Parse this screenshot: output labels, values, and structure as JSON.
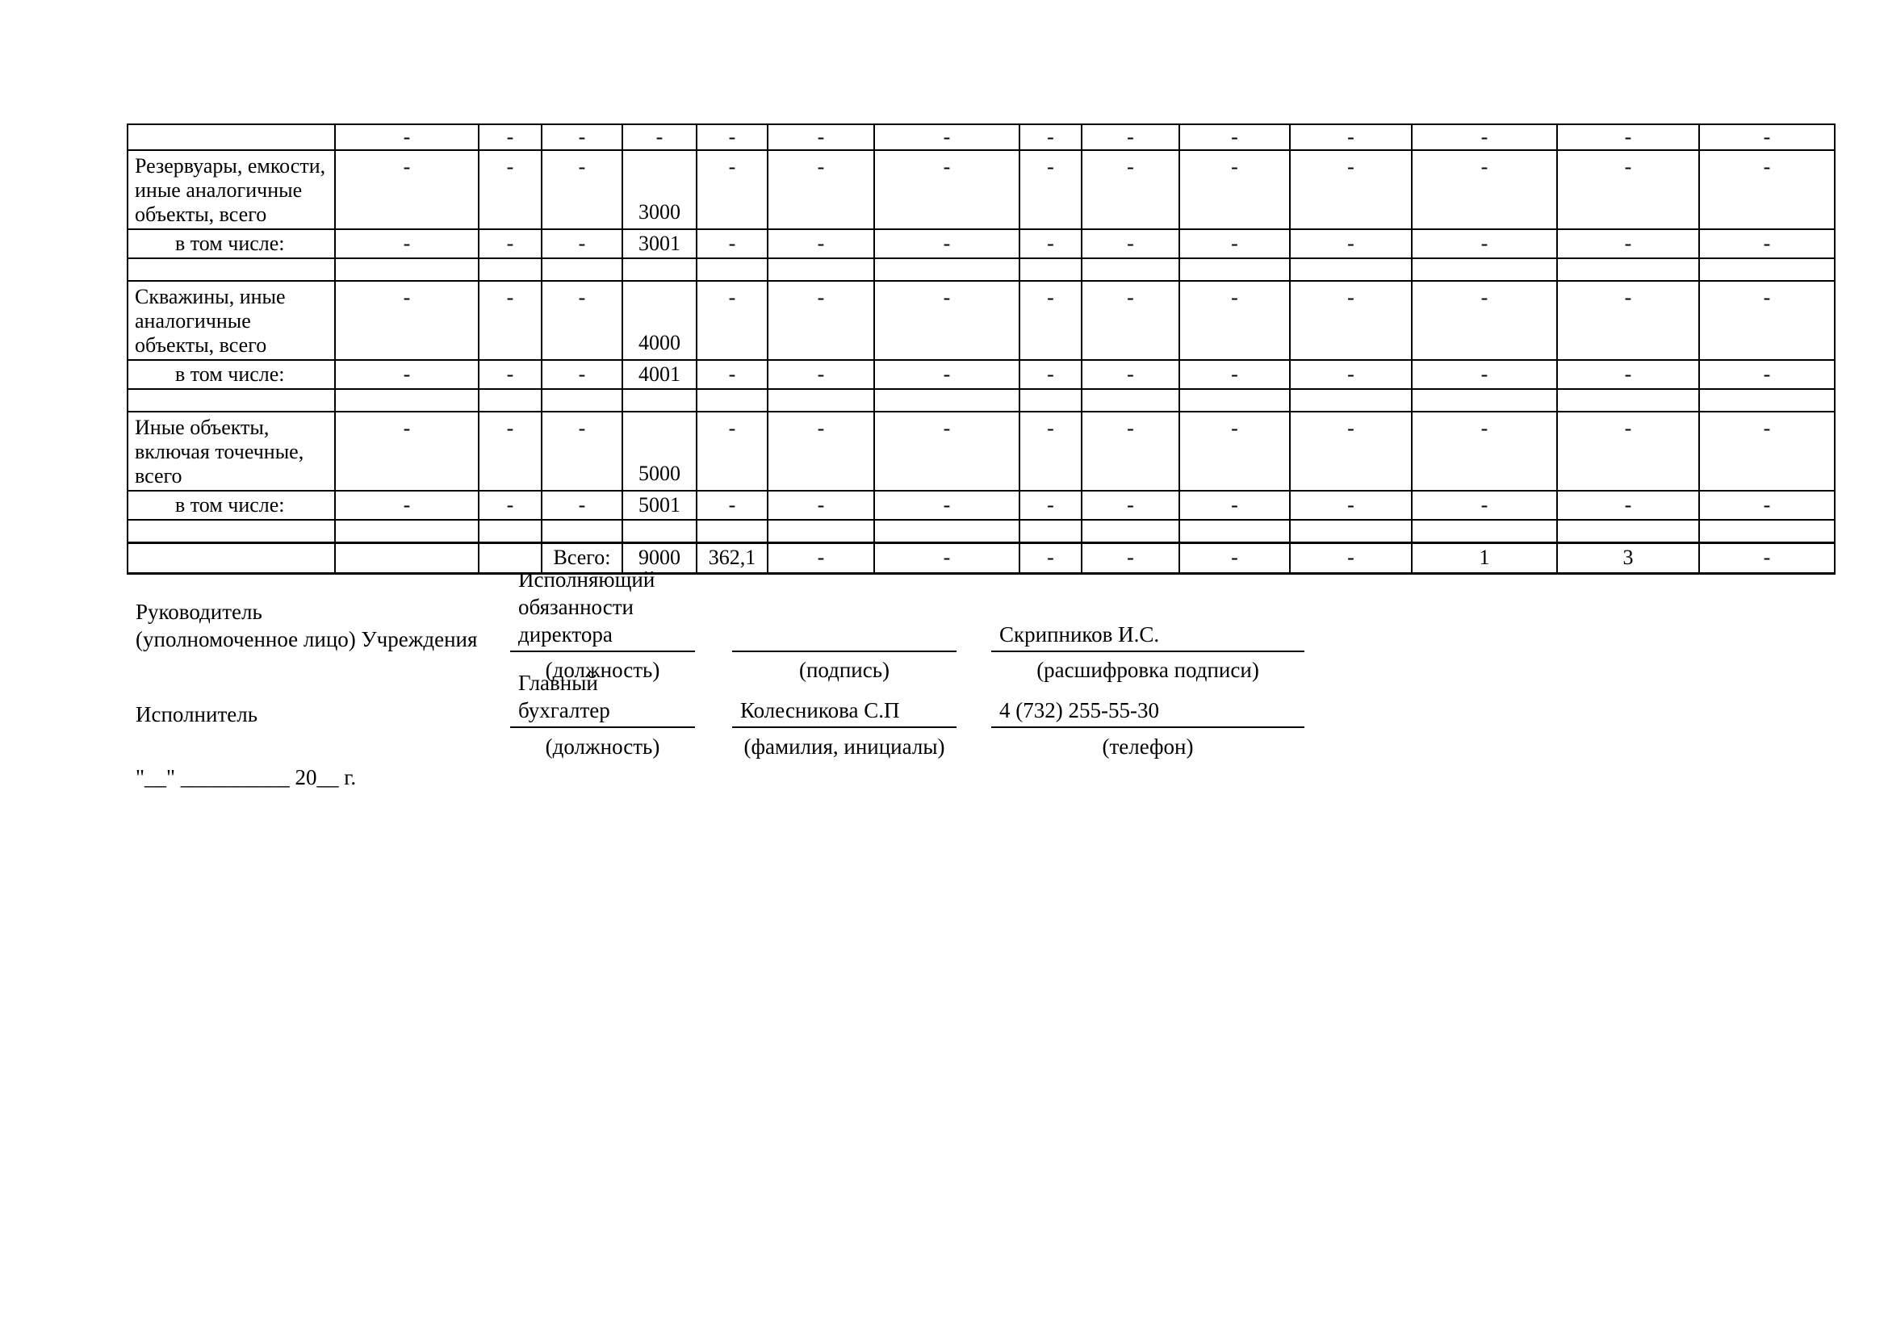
{
  "colors": {
    "ink": "#000000",
    "paper": "#ffffff"
  },
  "table": {
    "rows": [
      {
        "tall": false,
        "indent": false,
        "total": false,
        "label": "",
        "cells": [
          "-",
          "-",
          "-",
          "-",
          "-",
          "-",
          "-",
          "-",
          "-",
          "-",
          "-",
          "-",
          "-",
          "-"
        ]
      },
      {
        "tall": true,
        "indent": false,
        "total": false,
        "label": [
          "Резервуары, емкости,",
          "иные аналогичные",
          "объекты, всего"
        ],
        "cells": [
          "-",
          "-",
          "-",
          "3000",
          "-",
          "-",
          "-",
          "-",
          "-",
          "-",
          "-",
          "-",
          "-",
          "-"
        ]
      },
      {
        "tall": false,
        "indent": true,
        "total": false,
        "label": "в том числе:",
        "cells": [
          "-",
          "-",
          "-",
          "3001",
          "-",
          "-",
          "-",
          "-",
          "-",
          "-",
          "-",
          "-",
          "-",
          "-"
        ]
      },
      {
        "tall": false,
        "indent": false,
        "total": false,
        "label": "",
        "cells": [
          "",
          "",
          "",
          "",
          "",
          "",
          "",
          "",
          "",
          "",
          "",
          "",
          "",
          ""
        ]
      },
      {
        "tall": true,
        "indent": false,
        "total": false,
        "label": [
          "Скважины, иные",
          "аналогичные",
          "объекты, всего"
        ],
        "cells": [
          "-",
          "-",
          "-",
          "4000",
          "-",
          "-",
          "-",
          "-",
          "-",
          "-",
          "-",
          "-",
          "-",
          "-"
        ]
      },
      {
        "tall": false,
        "indent": true,
        "total": false,
        "label": "в том числе:",
        "cells": [
          "-",
          "-",
          "-",
          "4001",
          "-",
          "-",
          "-",
          "-",
          "-",
          "-",
          "-",
          "-",
          "-",
          "-"
        ]
      },
      {
        "tall": false,
        "indent": false,
        "total": false,
        "label": "",
        "cells": [
          "",
          "",
          "",
          "",
          "",
          "",
          "",
          "",
          "",
          "",
          "",
          "",
          "",
          ""
        ]
      },
      {
        "tall": true,
        "indent": false,
        "total": false,
        "label": [
          "Иные объекты,",
          "включая точечные,",
          "всего"
        ],
        "cells": [
          "-",
          "-",
          "-",
          "5000",
          "-",
          "-",
          "-",
          "-",
          "-",
          "-",
          "-",
          "-",
          "-",
          "-"
        ]
      },
      {
        "tall": false,
        "indent": true,
        "total": false,
        "label": "в том числе:",
        "cells": [
          "-",
          "-",
          "-",
          "5001",
          "-",
          "-",
          "-",
          "-",
          "-",
          "-",
          "-",
          "-",
          "-",
          "-"
        ]
      },
      {
        "tall": false,
        "indent": false,
        "total": false,
        "label": "",
        "cells": [
          "",
          "",
          "",
          "",
          "",
          "",
          "",
          "",
          "",
          "",
          "",
          "",
          "",
          ""
        ]
      },
      {
        "tall": false,
        "indent": false,
        "total": true,
        "label": "",
        "cells": [
          "",
          "",
          "Всего:",
          "9000",
          "362,1",
          "-",
          "-",
          "-",
          "-",
          "-",
          "-",
          "1",
          "3",
          "-"
        ]
      }
    ]
  },
  "signatures": {
    "head": {
      "role_lines": [
        "Руководитель",
        "(уполномоченное лицо) Учреждения"
      ],
      "position_lines": [
        "Исполняющий",
        "обязанности",
        "директора"
      ],
      "position_caption": "(должность)",
      "signature_caption": "(подпись)",
      "name": "Скрипников И.С.",
      "name_caption": "(расшифровка подписи)"
    },
    "executor": {
      "role": "Исполнитель",
      "position_lines": [
        "Главный",
        "бухгалтер"
      ],
      "position_caption": "(должность)",
      "name": "Колесникова С.П",
      "name_caption": "(фамилия, инициалы)",
      "phone": "4 (732) 255-55-30",
      "phone_caption": "(телефон)"
    },
    "date_line": "\"__\" __________ 20__ г."
  }
}
